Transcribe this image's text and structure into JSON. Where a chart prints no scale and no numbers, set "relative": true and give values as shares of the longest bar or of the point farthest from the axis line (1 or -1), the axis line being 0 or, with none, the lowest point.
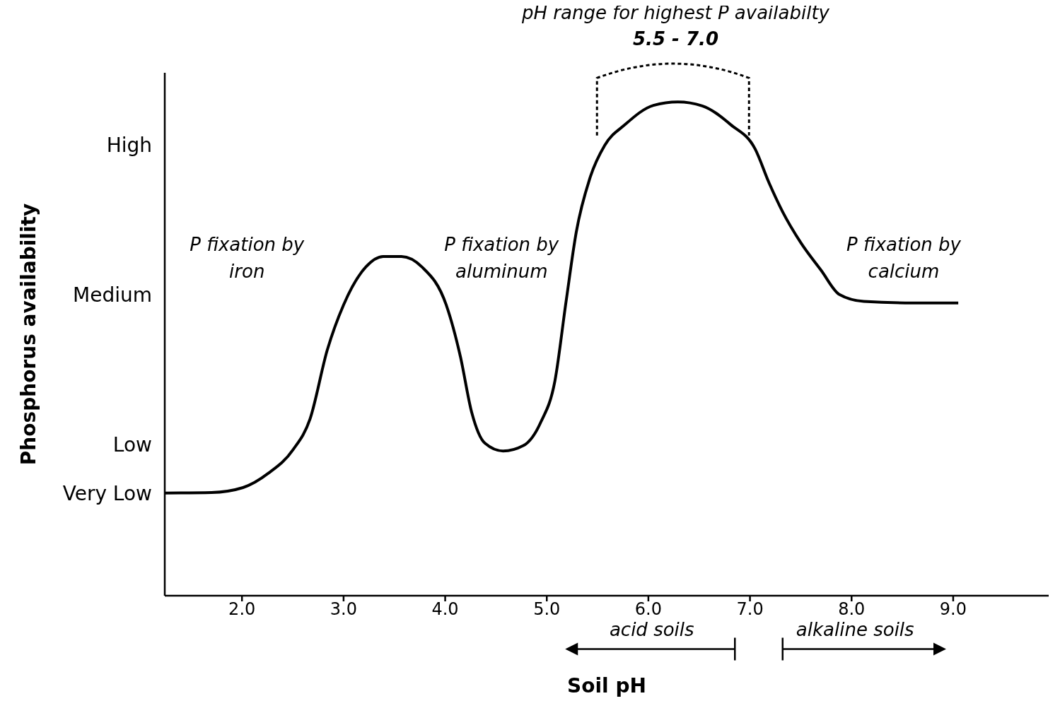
{
  "chart_data": {
    "type": "line",
    "xlabel": "Soil pH",
    "x": [
      1.24,
      1.7,
      2.01,
      2.26,
      2.5,
      2.67,
      2.84,
      3.0,
      3.22,
      3.39,
      3.57,
      3.77,
      4.01,
      4.15,
      4.26,
      4.39,
      4.57,
      4.77,
      4.94,
      5.08,
      5.19,
      5.29,
      5.43,
      5.57,
      5.77,
      6.05,
      6.29,
      6.53,
      6.81,
      7.05,
      7.19,
      7.32,
      7.5,
      7.7,
      7.88,
      8.12,
      8.6,
      9.05
    ],
    "values": [
      0.208,
      0.209,
      0.219,
      0.248,
      0.295,
      0.358,
      0.498,
      0.589,
      0.666,
      0.687,
      0.687,
      0.666,
      0.589,
      0.484,
      0.372,
      0.309,
      0.293,
      0.304,
      0.351,
      0.435,
      0.596,
      0.736,
      0.849,
      0.912,
      0.954,
      0.993,
      1.0,
      0.992,
      0.954,
      0.905,
      0.835,
      0.778,
      0.715,
      0.659,
      0.61,
      0.596,
      0.593,
      0.593
    ],
    "color": "#000000",
    "marker": "none",
    "line_style": "solid",
    "xlim": [
      1.24,
      9.94
    ],
    "xticks": [
      {
        "value": 2,
        "label": "2.0"
      },
      {
        "value": 3,
        "label": "3.0"
      },
      {
        "value": 4,
        "label": "4.0"
      },
      {
        "value": 5,
        "label": "5.0"
      },
      {
        "value": 6,
        "label": "6.0"
      },
      {
        "value": 7,
        "label": "7.0"
      },
      {
        "value": 8,
        "label": "8.0"
      },
      {
        "value": 9,
        "label": "9.0"
      }
    ],
    "relative": true,
    "annotations": [
      "High",
      "Medium",
      "Low",
      "Very Low",
      "P fixation by iron",
      "pH range for highest P availabilty",
      "5.5 - 7.0",
      "P fixation by aluminum",
      "P fixation by calcium",
      "acid soils",
      "alkaline soils",
      "Phosphorus availability"
    ]
  }
}
